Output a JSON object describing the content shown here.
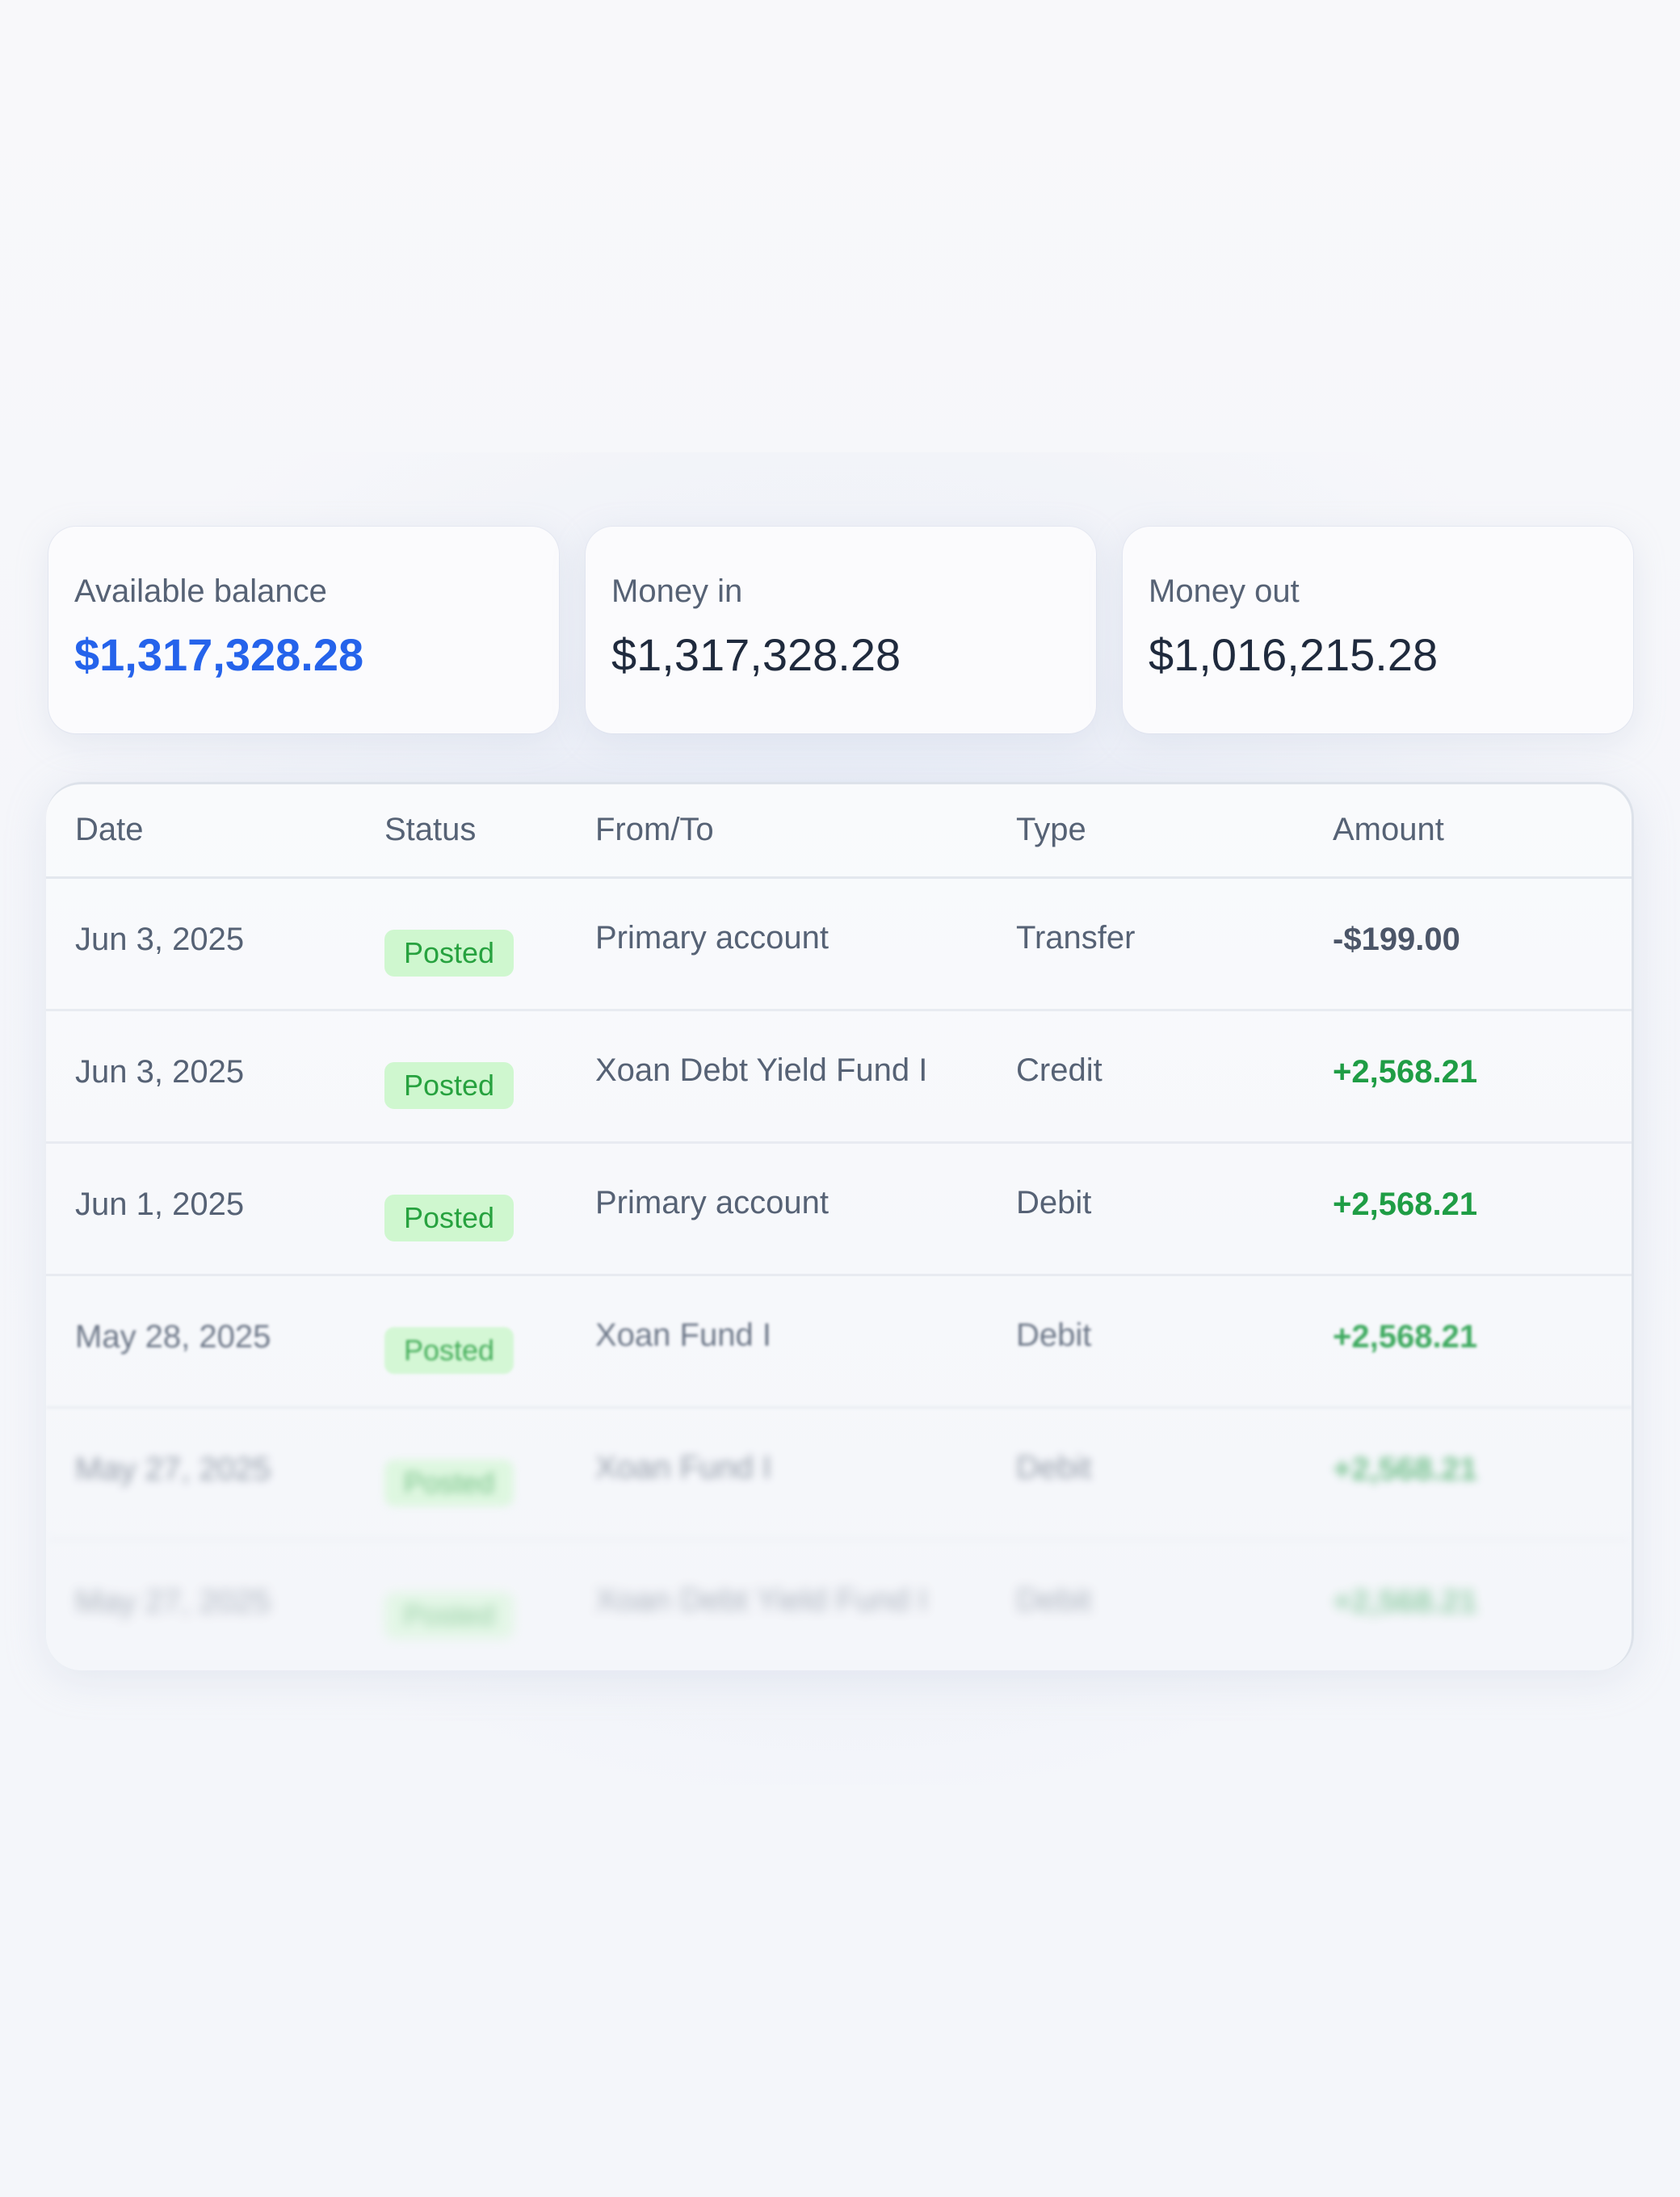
{
  "summary": {
    "available_balance": {
      "label": "Available balance",
      "value": "$1,317,328.28"
    },
    "money_in": {
      "label": "Money in",
      "value": "$1,317,328.28"
    },
    "money_out": {
      "label": "Money out",
      "value": "$1,016,215.28"
    }
  },
  "table": {
    "headers": {
      "date": "Date",
      "status": "Status",
      "from_to": "From/To",
      "type": "Type",
      "amount": "Amount"
    },
    "rows": [
      {
        "date": "Jun 3, 2025",
        "status": "Posted",
        "from_to": "Primary account",
        "type": "Transfer",
        "amount": "-$199.00"
      },
      {
        "date": "Jun 3, 2025",
        "status": "Posted",
        "from_to": "Xoan Debt Yield Fund I",
        "type": "Credit",
        "amount": "+2,568.21"
      },
      {
        "date": "Jun 1, 2025",
        "status": "Posted",
        "from_to": "Primary account",
        "type": "Debit",
        "amount": "+2,568.21"
      },
      {
        "date": "May 28, 2025",
        "status": "Posted",
        "from_to": "Xoan Fund I",
        "type": "Debit",
        "amount": "+2,568.21"
      },
      {
        "date": "May 27, 2025",
        "status": "Posted",
        "from_to": "Xoan Fund I",
        "type": "Debit",
        "amount": "+2,568.21"
      },
      {
        "date": "May 27, 2025",
        "status": "Posted",
        "from_to": "Xoan Debt Yield Fund I",
        "type": "Debit",
        "amount": "+2,568.21"
      }
    ]
  },
  "colors": {
    "accent": "#2563eb",
    "positive": "#1f9d45",
    "badge_bg": "#cff7cf",
    "badge_text": "#27a23f"
  }
}
